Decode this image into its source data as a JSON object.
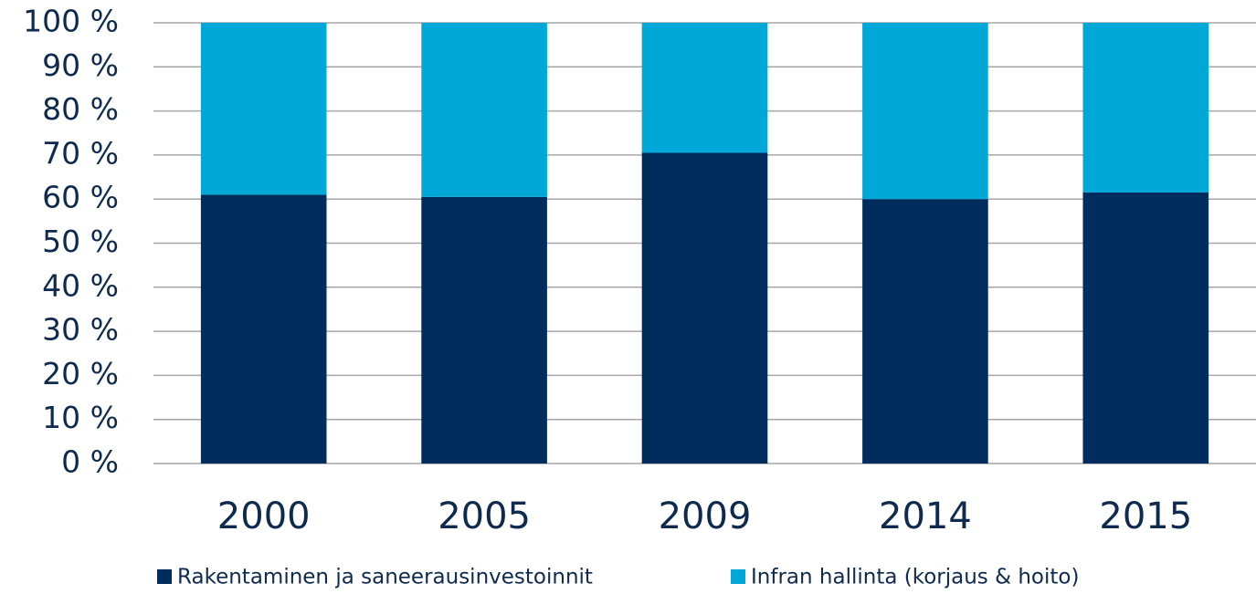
{
  "chart_data": {
    "type": "stacked_bar",
    "categories": [
      "2000",
      "2005",
      "2009",
      "2014",
      "2015"
    ],
    "series": [
      {
        "name": "Rakentaminen ja saneerausinvestoinnit",
        "color": "#002d5e",
        "values": [
          61,
          60.5,
          70.5,
          60,
          61.5
        ]
      },
      {
        "name": "Infran hallinta (korjaus & hoito)",
        "color": "#00a8d8",
        "values": [
          39,
          39.5,
          29.5,
          40,
          38.5
        ]
      }
    ],
    "ylim": [
      0,
      100
    ],
    "yticks": [
      {
        "value": 0,
        "label": "0 %"
      },
      {
        "value": 10,
        "label": "10 %"
      },
      {
        "value": 20,
        "label": "20 %"
      },
      {
        "value": 30,
        "label": "30 %"
      },
      {
        "value": 40,
        "label": "40 %"
      },
      {
        "value": 50,
        "label": "50 %"
      },
      {
        "value": 60,
        "label": "60 %"
      },
      {
        "value": 70,
        "label": "70 %"
      },
      {
        "value": 80,
        "label": "80 %"
      },
      {
        "value": 90,
        "label": "90 %"
      },
      {
        "value": 100,
        "label": "100 %"
      }
    ],
    "grid": true,
    "legend": "bottom"
  }
}
